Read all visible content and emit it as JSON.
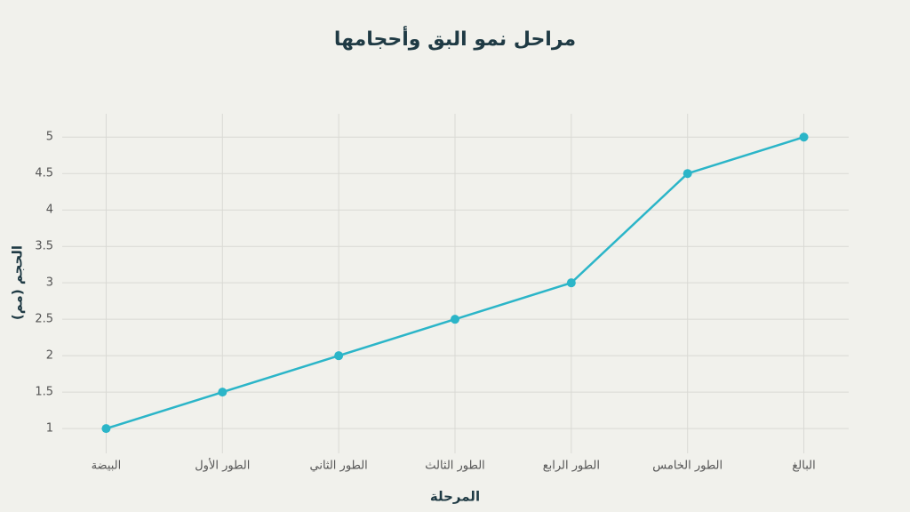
{
  "chart_data": {
    "type": "line",
    "title": "مراحل نمو البق وأحجامها",
    "x_label": "المرحلة",
    "y_label": "الحجم (مم)",
    "categories": [
      "البيضة",
      "الطور الأول",
      "الطور الثاني",
      "الطور الثالث",
      "الطور الرابع",
      "الطور الخامس",
      "البالغ"
    ],
    "values": [
      1,
      1.5,
      2,
      2.5,
      3,
      4.5,
      5
    ],
    "color": "#2bb5c8",
    "ylim": [
      0.66,
      5.32
    ],
    "yticks": [
      1,
      1.5,
      2,
      2.5,
      3,
      3.5,
      4,
      4.5,
      5
    ],
    "grid": true
  }
}
